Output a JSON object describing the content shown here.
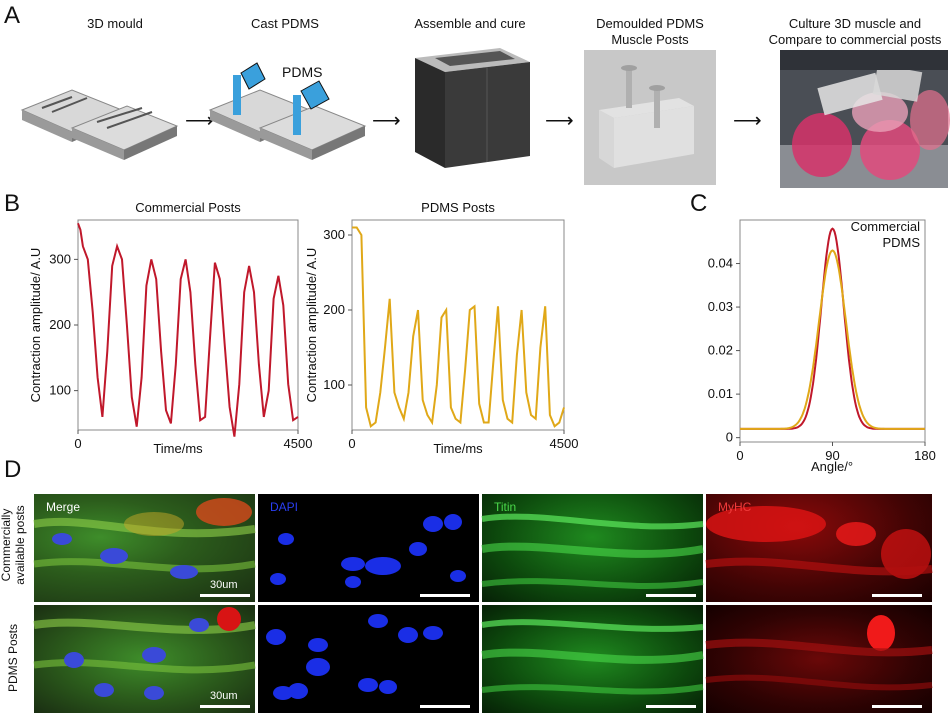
{
  "panels": {
    "a": "A",
    "b": "B",
    "c": "C",
    "d": "D"
  },
  "workflow": {
    "steps": [
      {
        "label": "3D mould"
      },
      {
        "label": "Cast PDMS"
      },
      {
        "label": "Assemble and cure"
      },
      {
        "label_line1": "Demoulded PDMS",
        "label_line2": "Muscle Posts"
      },
      {
        "label_line1": "Culture 3D muscle and",
        "label_line2": "Compare to commercial posts"
      }
    ],
    "pdms_tag": "PDMS",
    "arrow": "⟶"
  },
  "colors": {
    "commercial": "#c0182b",
    "pdms": "#e0a818"
  },
  "chart_data": [
    {
      "type": "line",
      "title": "Commercial Posts",
      "xlabel": "Time/ms",
      "ylabel": "Contraction amplitude/ A.U",
      "xlim": [
        0,
        4500
      ],
      "ylim": [
        40,
        360
      ],
      "xticks": [
        0,
        4500
      ],
      "yticks": [
        100,
        200,
        300
      ],
      "series": [
        {
          "x": [
            0,
            50,
            100,
            200,
            300,
            400,
            500,
            600,
            700,
            800,
            900,
            1000,
            1100,
            1200,
            1300,
            1400,
            1500,
            1600,
            1700,
            1800,
            1900,
            2000,
            2100,
            2200,
            2300,
            2400,
            2500,
            2600,
            2700,
            2800,
            2900,
            3000,
            3100,
            3200,
            3300,
            3400,
            3500,
            3600,
            3700,
            3800,
            3900,
            4000,
            4100,
            4200,
            4300,
            4400,
            4500
          ],
          "values": [
            355,
            345,
            320,
            300,
            220,
            120,
            60,
            160,
            290,
            320,
            300,
            200,
            90,
            45,
            120,
            260,
            300,
            270,
            160,
            70,
            50,
            140,
            270,
            300,
            250,
            140,
            55,
            60,
            180,
            295,
            270,
            170,
            75,
            30,
            110,
            250,
            290,
            250,
            140,
            60,
            100,
            240,
            275,
            230,
            110,
            55,
            60
          ]
        }
      ]
    },
    {
      "type": "line",
      "title": "PDMS Posts",
      "xlabel": "Time/ms",
      "ylabel": "Contraction amplitude/ A.U",
      "xlim": [
        0,
        4500
      ],
      "ylim": [
        40,
        320
      ],
      "xticks": [
        0,
        4500
      ],
      "yticks": [
        100,
        200,
        300
      ],
      "series": [
        {
          "x": [
            0,
            100,
            200,
            300,
            400,
            500,
            600,
            700,
            800,
            900,
            1000,
            1100,
            1200,
            1300,
            1400,
            1500,
            1600,
            1700,
            1800,
            1900,
            2000,
            2100,
            2200,
            2300,
            2400,
            2500,
            2600,
            2700,
            2800,
            2900,
            3000,
            3100,
            3200,
            3300,
            3400,
            3500,
            3600,
            3700,
            3800,
            3900,
            4000,
            4100,
            4200,
            4300,
            4400,
            4500
          ],
          "values": [
            310,
            310,
            300,
            70,
            45,
            50,
            90,
            150,
            215,
            90,
            70,
            55,
            90,
            165,
            200,
            80,
            60,
            50,
            100,
            190,
            200,
            70,
            55,
            50,
            120,
            200,
            205,
            75,
            50,
            50,
            130,
            205,
            80,
            55,
            50,
            140,
            200,
            90,
            60,
            55,
            150,
            205,
            60,
            45,
            50,
            70
          ]
        }
      ]
    },
    {
      "type": "line",
      "title": "",
      "xlabel": "Angle/°",
      "ylabel": "",
      "xlim": [
        0,
        180
      ],
      "ylim": [
        -0.001,
        0.05
      ],
      "xticks": [
        0,
        90,
        180
      ],
      "yticks": [
        0,
        0.01,
        0.02,
        0.03,
        0.04
      ],
      "legend": "top-right",
      "series": [
        {
          "name": "Commercial",
          "peak": 0.048,
          "center": 90,
          "sigma": 11,
          "baseline": 0.002
        },
        {
          "name": "PDMS",
          "peak": 0.043,
          "center": 90,
          "sigma": 13,
          "baseline": 0.002
        }
      ]
    }
  ],
  "microscopy": {
    "columns": [
      "Merge",
      "DAPI",
      "Titin",
      "MyHC"
    ],
    "rows": [
      {
        "label_line1": "Commercially",
        "label_line2": "available posts"
      },
      {
        "label_line1": "PDMS Posts"
      }
    ],
    "scale_text": "30um"
  }
}
